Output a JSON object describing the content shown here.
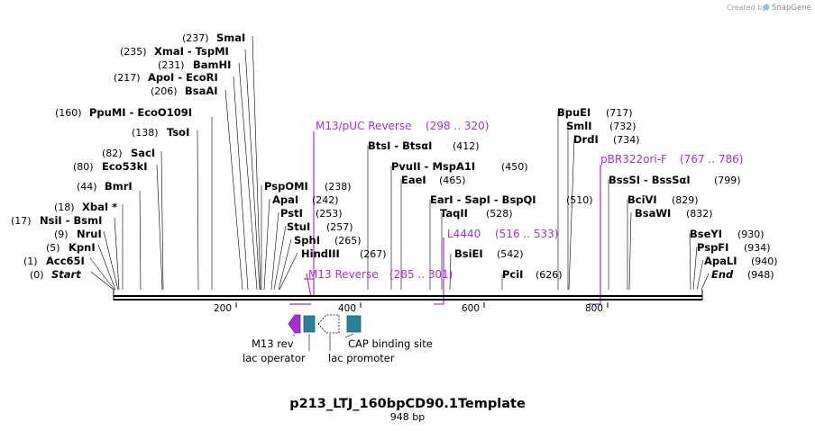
{
  "credit": {
    "prefix": "Created by",
    "brand": "SnapGene"
  },
  "map": {
    "name": "p213_LTJ_160bpCD90.1Template",
    "length_label": "948 bp",
    "length": 948
  },
  "ruler_ticks": [
    "200",
    "400",
    "600",
    "800"
  ],
  "sites": [
    {
      "pos": "(0)",
      "name": "Start",
      "at": 0,
      "italic": true
    },
    {
      "pos": "(1)",
      "name": "Acc65I",
      "at": 1
    },
    {
      "pos": "(5)",
      "name": "KpnI",
      "at": 5
    },
    {
      "pos": "(9)",
      "name": "NruI",
      "at": 9
    },
    {
      "pos": "(17)",
      "name": "NsiI - BsmI",
      "at": 17
    },
    {
      "pos": "(18)",
      "name": "XbaI *",
      "at": 18
    },
    {
      "pos": "(44)",
      "name": "BmrI",
      "at": 44
    },
    {
      "pos": "(80)",
      "name": "Eco53kI",
      "at": 80
    },
    {
      "pos": "(82)",
      "name": "SacI",
      "at": 82
    },
    {
      "pos": "(138)",
      "name": "TsoI",
      "at": 138
    },
    {
      "pos": "(160)",
      "name": "PpuMI - EcoO109I",
      "at": 160
    },
    {
      "pos": "(206)",
      "name": "BsaAI",
      "at": 206
    },
    {
      "pos": "(217)",
      "name": "ApoI - EcoRI",
      "at": 217
    },
    {
      "pos": "(231)",
      "name": "BamHI",
      "at": 231
    },
    {
      "pos": "(235)",
      "name": "XmaI - TspMI",
      "at": 235
    },
    {
      "pos": "(237)",
      "name": "SmaI",
      "at": 237
    },
    {
      "pos": "(238)",
      "name": "PspOMI",
      "at": 238
    },
    {
      "pos": "(242)",
      "name": "ApaI",
      "at": 242
    },
    {
      "pos": "(253)",
      "name": "PstI",
      "at": 253
    },
    {
      "pos": "(257)",
      "name": "StuI",
      "at": 257
    },
    {
      "pos": "(265)",
      "name": "SphI",
      "at": 265
    },
    {
      "pos": "(267)",
      "name": "HindIII",
      "at": 267
    },
    {
      "pos": "(412)",
      "name": "BtsI - BtsαI",
      "at": 412
    },
    {
      "pos": "(450)",
      "name": "PvuII - MspA1I",
      "at": 450
    },
    {
      "pos": "(465)",
      "name": "EaeI",
      "at": 465
    },
    {
      "pos": "(510)",
      "name": "EarI - SapI - BspQI",
      "at": 510
    },
    {
      "pos": "(528)",
      "name": "TaqII",
      "at": 528
    },
    {
      "pos": "(542)",
      "name": "BsiEI",
      "at": 542
    },
    {
      "pos": "(626)",
      "name": "PciI",
      "at": 626
    },
    {
      "pos": "(717)",
      "name": "BpuEI",
      "at": 717
    },
    {
      "pos": "(732)",
      "name": "SmlI",
      "at": 732
    },
    {
      "pos": "(734)",
      "name": "DrdI",
      "at": 734
    },
    {
      "pos": "(799)",
      "name": "BssSI - BssSαI",
      "at": 799
    },
    {
      "pos": "(829)",
      "name": "BciVI",
      "at": 829
    },
    {
      "pos": "(832)",
      "name": "BsaWI",
      "at": 832
    },
    {
      "pos": "(930)",
      "name": "BseYI",
      "at": 930
    },
    {
      "pos": "(934)",
      "name": "PspFI",
      "at": 934
    },
    {
      "pos": "(940)",
      "name": "ApaLI",
      "at": 940
    },
    {
      "pos": "(948)",
      "name": "End",
      "at": 948,
      "italic": true
    }
  ],
  "primers": [
    {
      "name": "M13/pUC Reverse",
      "range": "(298 .. 320)",
      "start": 298,
      "end": 320
    },
    {
      "name": "M13 Reverse",
      "range": "(285 .. 301)",
      "start": 285,
      "end": 301
    },
    {
      "name": "L4440",
      "range": "(516 .. 533)",
      "start": 516,
      "end": 533
    },
    {
      "name": "pBR322ori-F",
      "range": "(767 .. 786)",
      "start": 767,
      "end": 786
    }
  ],
  "features": [
    {
      "name": "M13 rev",
      "kind": "arrow-left",
      "color": "#a82fd0"
    },
    {
      "name": "lac operator",
      "kind": "box",
      "color": "#2b7f97"
    },
    {
      "name": "lac promoter",
      "kind": "arrow-left-outline",
      "color": "#ffffff"
    },
    {
      "name": "CAP binding site",
      "kind": "box",
      "color": "#2b7f97"
    }
  ],
  "colors": {
    "primer": "#a82fd0",
    "feature_box": "#2b7f97",
    "backbone": "#000000"
  }
}
